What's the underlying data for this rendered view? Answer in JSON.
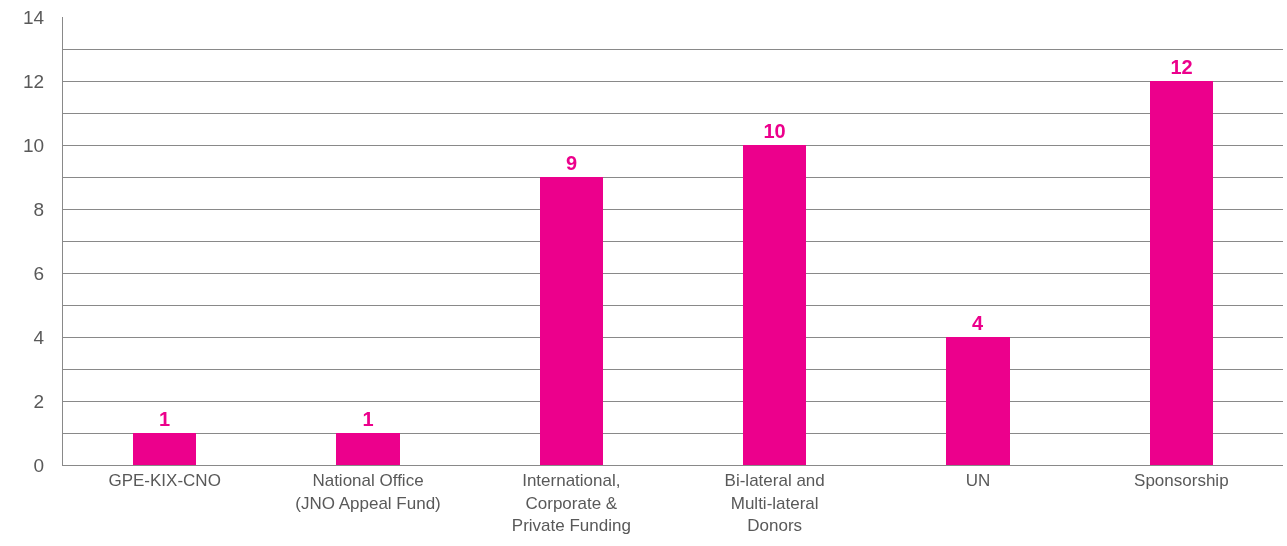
{
  "chart_data": {
    "type": "bar",
    "categories": [
      "GPE-KIX-CNO",
      "National Office\n(JNO Appeal Fund)",
      "International,\nCorporate &\nPrivate Funding",
      "Bi-lateral and\nMulti-lateral\nDonors",
      "UN",
      "Sponsorship"
    ],
    "values": [
      1,
      1,
      9,
      10,
      4,
      12
    ],
    "color": "#ec008c",
    "ylim": [
      0,
      14
    ],
    "yticks": [
      0,
      {
        "value": 1,
        "label": null
      },
      2,
      {
        "value": 3,
        "label": null
      },
      4,
      {
        "value": 5,
        "label": null
      },
      6,
      {
        "value": 7,
        "label": null
      },
      8,
      {
        "value": 9,
        "label": null
      },
      10,
      {
        "value": 11,
        "label": null
      },
      12,
      {
        "value": 13,
        "label": null
      },
      14
    ],
    "grid": "y",
    "data_labels": true,
    "legend": false
  }
}
